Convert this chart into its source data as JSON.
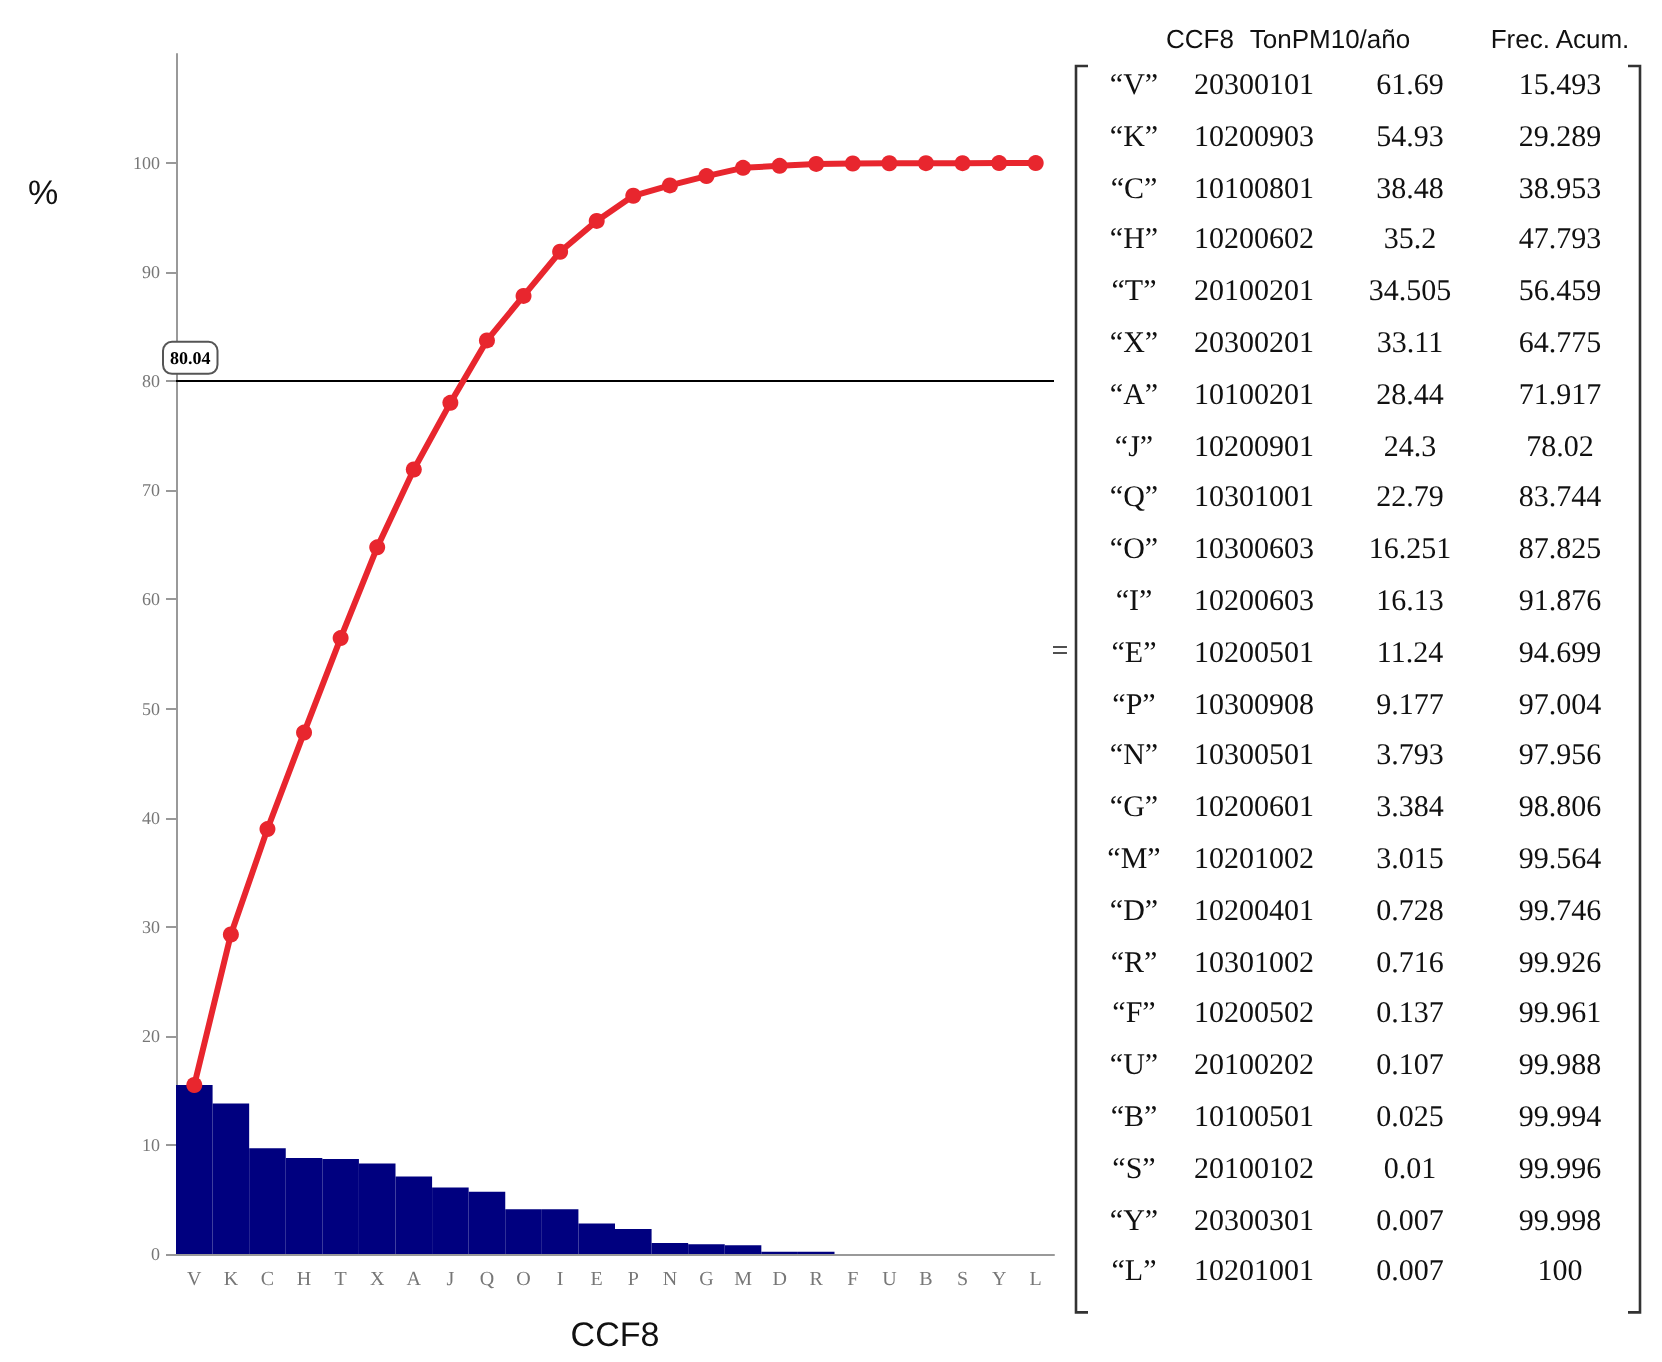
{
  "chart_data": [
    {
      "type": "bar",
      "xlabel": "CCF8",
      "ylabel": "%",
      "categories": [
        "V",
        "K",
        "C",
        "H",
        "T",
        "X",
        "A",
        "J",
        "Q",
        "O",
        "I",
        "E",
        "P",
        "N",
        "G",
        "M",
        "D",
        "R",
        "F",
        "U",
        "B",
        "S",
        "Y",
        "L"
      ],
      "series": [
        {
          "type": "bar",
          "color": "#00007f",
          "values": [
            15.5,
            13.8,
            9.7,
            8.8,
            8.7,
            8.3,
            7.1,
            6.1,
            5.7,
            4.1,
            4.1,
            2.8,
            2.3,
            1.0,
            0.9,
            0.8,
            0.2,
            0.2,
            0,
            0,
            0,
            0,
            0,
            0
          ]
        },
        {
          "type": "line",
          "color": "#e8262e",
          "values": [
            15.493,
            29.289,
            38.953,
            47.793,
            56.459,
            64.775,
            71.917,
            78.02,
            83.744,
            87.825,
            91.876,
            94.699,
            97.004,
            97.956,
            98.806,
            99.564,
            99.746,
            99.926,
            99.961,
            99.988,
            99.994,
            99.996,
            99.998,
            100
          ]
        }
      ],
      "ylim": [
        0,
        110
      ],
      "yticks": [
        0,
        10,
        20,
        30,
        40,
        50,
        60,
        70,
        80,
        90,
        100
      ],
      "ref_lines": [
        {
          "axis": "y",
          "value": 80.04,
          "label": "80.04",
          "color": "#000000"
        }
      ],
      "marker": "circle",
      "grid": false
    },
    {
      "type": "other",
      "annotations": [
        "=",
        "CCF8",
        "TonPM10/año",
        "Frec. Acum.",
        "“V”",
        "20300101",
        "61.69",
        "15.493",
        "“K”",
        "10200903",
        "54.93",
        "29.289",
        "“C”",
        "10100801",
        "38.48",
        "38.953",
        "“H”",
        "10200602",
        "35.2",
        "47.793",
        "“T”",
        "20100201",
        "34.505",
        "56.459",
        "“X”",
        "20300201",
        "33.11",
        "64.775",
        "“A”",
        "10100201",
        "28.44",
        "71.917",
        "“J”",
        "10200901",
        "24.3",
        "78.02",
        "“Q”",
        "10301001",
        "22.79",
        "83.744",
        "“O”",
        "10300603",
        "16.251",
        "87.825",
        "“I”",
        "10200603",
        "16.13",
        "91.876",
        "“E”",
        "10200501",
        "11.24",
        "94.699",
        "“P”",
        "10300908",
        "9.177",
        "97.004",
        "“N”",
        "10300501",
        "3.793",
        "97.956",
        "“G”",
        "10200601",
        "3.384",
        "98.806",
        "“M”",
        "10201002",
        "3.015",
        "99.564",
        "“D”",
        "10200401",
        "0.728",
        "99.746",
        "“R”",
        "10301002",
        "0.716",
        "99.926",
        "“F”",
        "10200502",
        "0.137",
        "99.961",
        "“U”",
        "20100202",
        "0.107",
        "99.988",
        "“B”",
        "10100501",
        "0.025",
        "99.994",
        "“S”",
        "20100102",
        "0.01",
        "99.996",
        "“Y”",
        "20300301",
        "0.007",
        "99.998",
        "“L”",
        "10201001",
        "0.007",
        "100"
      ]
    }
  ]
}
